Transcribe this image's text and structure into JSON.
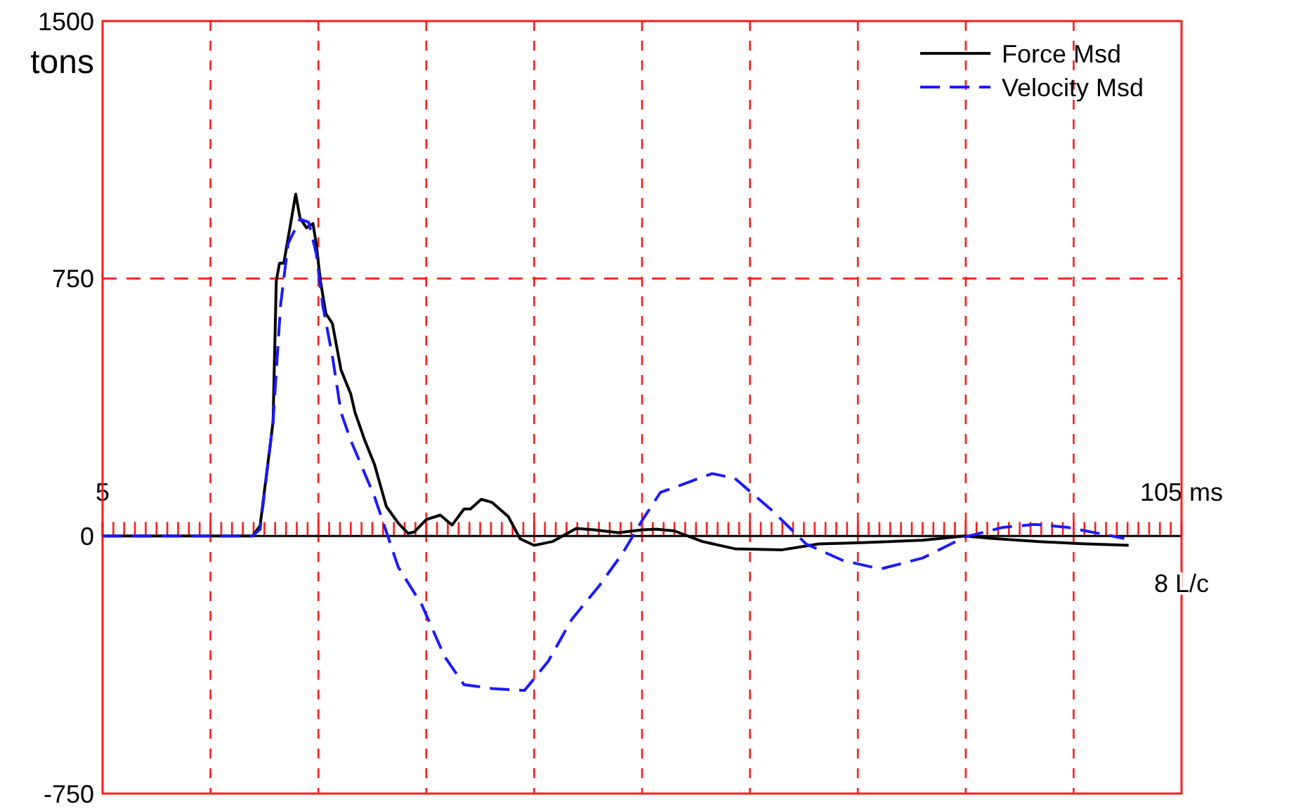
{
  "chart_data": {
    "type": "line",
    "ylabel": "tons",
    "xlim": [
      5,
      105
    ],
    "ylim": [
      -750,
      1500
    ],
    "xticks": [
      {
        "value": 5,
        "label": "5"
      },
      {
        "value": 15,
        "label": null
      },
      {
        "value": 25,
        "label": null
      },
      {
        "value": 35,
        "label": null
      },
      {
        "value": 45,
        "label": null
      },
      {
        "value": 55,
        "label": null
      },
      {
        "value": 65,
        "label": null
      },
      {
        "value": 75,
        "label": null
      },
      {
        "value": 85,
        "label": null
      },
      {
        "value": 95,
        "label": null
      },
      {
        "value": 105,
        "label": "105 ms"
      }
    ],
    "yticks": [
      -750,
      0,
      750,
      1500
    ],
    "grid": true,
    "legend": "top right",
    "annotations": [
      "8 L/c"
    ],
    "series": [
      {
        "name": "Force Msd",
        "color": "#000000",
        "line_style": "solid",
        "x": [
          5,
          18.9,
          19.6,
          20.8,
          21.1,
          21.4,
          21.8,
          22.9,
          23.3,
          23.9,
          24.5,
          24.8,
          25.2,
          25.7,
          26.3,
          27.1,
          28.0,
          28.4,
          29.3,
          30.2,
          31.3,
          32.4,
          33.3,
          33.9,
          35.0,
          36.3,
          37.4,
          38.5,
          39.1,
          40.1,
          41.1,
          42.6,
          43.7,
          45.0,
          46.7,
          48.9,
          50.6,
          52.8,
          55.0,
          56.3,
          58.0,
          60.6,
          63.6,
          68.0,
          71.4,
          74.9,
          81.0,
          84.9,
          87.5,
          91.8,
          96.2,
          100.1
        ],
        "values": [
          0,
          0,
          30,
          332,
          742,
          795,
          795,
          996,
          926,
          898,
          910,
          852,
          742,
          648,
          619,
          484,
          414,
          360,
          279,
          209,
          86,
          38,
          8,
          12,
          48,
          61,
          32,
          79,
          79,
          107,
          98,
          57,
          -8,
          -27,
          -16,
          22,
          18,
          10,
          18,
          20,
          15,
          -16,
          -37,
          -40,
          -23,
          -20,
          -12,
          0,
          -7,
          -16,
          -23,
          -27
        ]
      },
      {
        "name": "Velocity Msd",
        "color": "#1a1aff",
        "line_style": "dashed",
        "x": [
          5,
          18.9,
          19.6,
          20.8,
          21.5,
          22.2,
          23.3,
          24.1,
          24.8,
          25.4,
          26.3,
          27.1,
          28.0,
          30.2,
          32.4,
          34.6,
          36.7,
          38.5,
          41.1,
          44.1,
          46.3,
          48.5,
          51.0,
          53.2,
          55.0,
          56.7,
          61.5,
          63.6,
          67.1,
          70.2,
          73.6,
          77.1,
          81.0,
          84.9,
          88.4,
          91.4,
          94.5,
          99.7
        ],
        "values": [
          0,
          0,
          20,
          332,
          673,
          852,
          923,
          914,
          824,
          673,
          524,
          360,
          279,
          115,
          -90,
          -201,
          -351,
          -433,
          -444,
          -450,
          -365,
          -242,
          -146,
          -50,
          45,
          127,
          182,
          168,
          73,
          -23,
          -71,
          -96,
          -64,
          -3,
          25,
          34,
          25,
          -7
        ]
      }
    ]
  }
}
